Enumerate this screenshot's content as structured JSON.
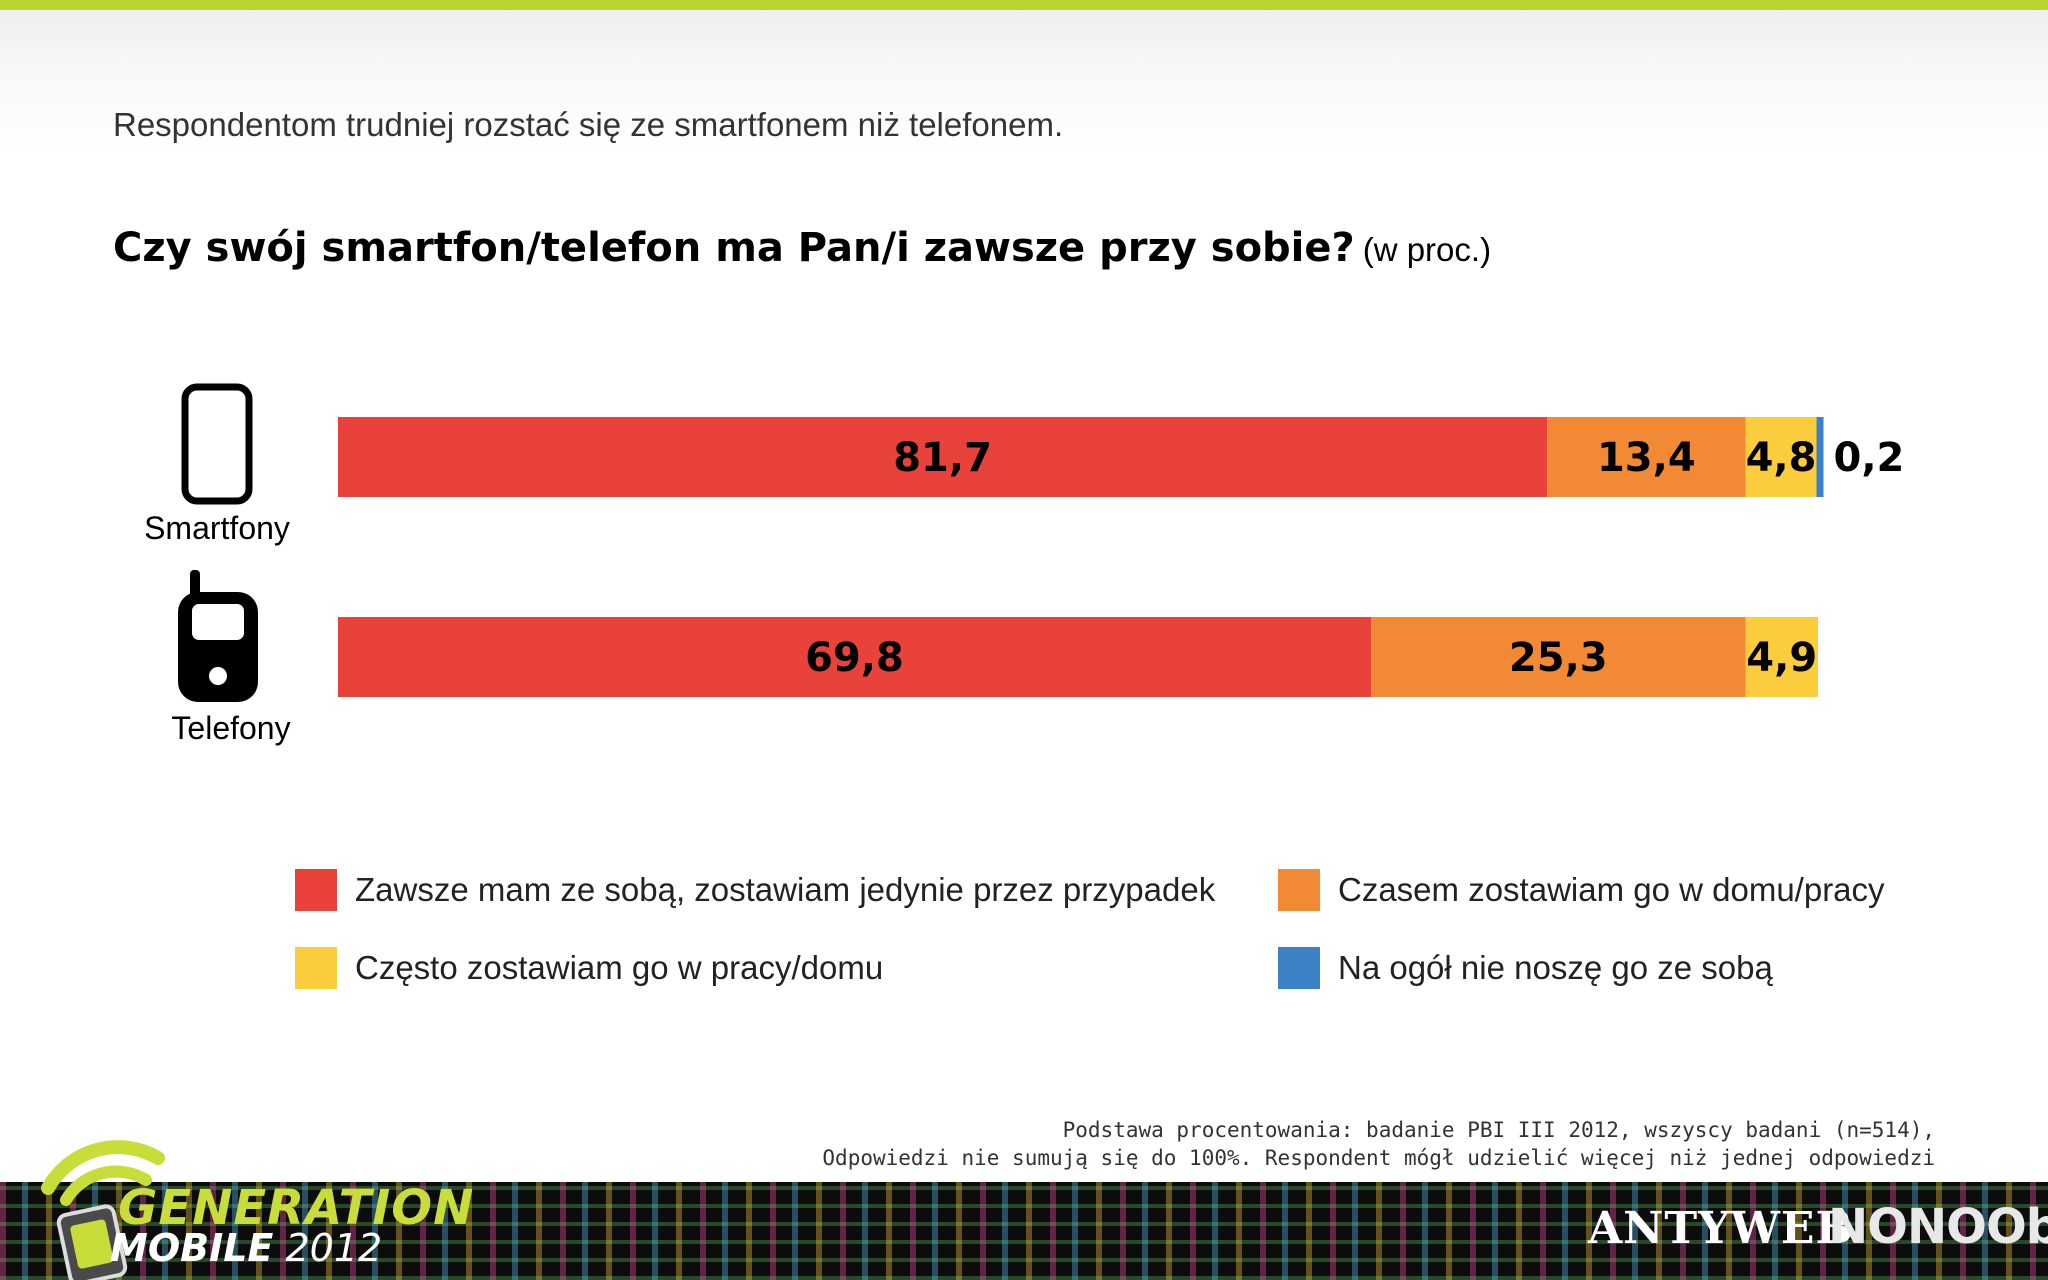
{
  "slide": {
    "subtitle": "Respondentom trudniej rozstać się ze smartfonem niż telefonem.",
    "question": "Czy swój smartfon/telefon ma Pan/i zawsze przy sobie?",
    "unit": "(w proc.)",
    "footnote_line1": "Podstawa procentowania: badanie PBI III 2012, wszyscy badani (n=514),",
    "footnote_line2": "Odpowiedzi nie sumują się do 100%. Respondent mógł udzielić więcej niż jednej odpowiedzi",
    "brand_left_line1": "GENERATION",
    "brand_left_line2_bold": "MOBILE",
    "brand_left_line2_year": "2012",
    "brand_mid": "ANTYWEB",
    "brand_right": "NONOObS"
  },
  "colors": {
    "red": "#e8423a",
    "orange": "#f28a35",
    "yellow": "#fbcc3c",
    "blue": "#3b82c4",
    "accent_green": "#b9d532"
  },
  "icons": {
    "smartfony": "smartphone-icon",
    "telefony": "mobile-phone-icon"
  },
  "chart_data": {
    "type": "bar",
    "orientation": "horizontal",
    "stacked": true,
    "categories": [
      "Smartfony",
      "Telefony"
    ],
    "series": [
      {
        "name": "Zawsze mam ze sobą, zostawiam jedynie przez przypadek",
        "color": "#e8423a",
        "values": [
          81.7,
          69.8
        ],
        "labels": [
          "81,7",
          "69,8"
        ]
      },
      {
        "name": "Czasem zostawiam go w domu/pracy",
        "color": "#f28a35",
        "values": [
          13.4,
          25.3
        ],
        "labels": [
          "13,4",
          "25,3"
        ]
      },
      {
        "name": "Często zostawiam go w pracy/domu",
        "color": "#fbcc3c",
        "values": [
          4.8,
          4.9
        ],
        "labels": [
          "4,8",
          "4,9"
        ]
      },
      {
        "name": "Na ogół nie noszę go ze sobą",
        "color": "#3b82c4",
        "values": [
          0.2,
          0
        ],
        "labels": [
          "0,2",
          ""
        ]
      }
    ],
    "xlim": [
      0,
      100
    ],
    "grid": false,
    "axes_visible": false,
    "legend_position": "bottom"
  }
}
